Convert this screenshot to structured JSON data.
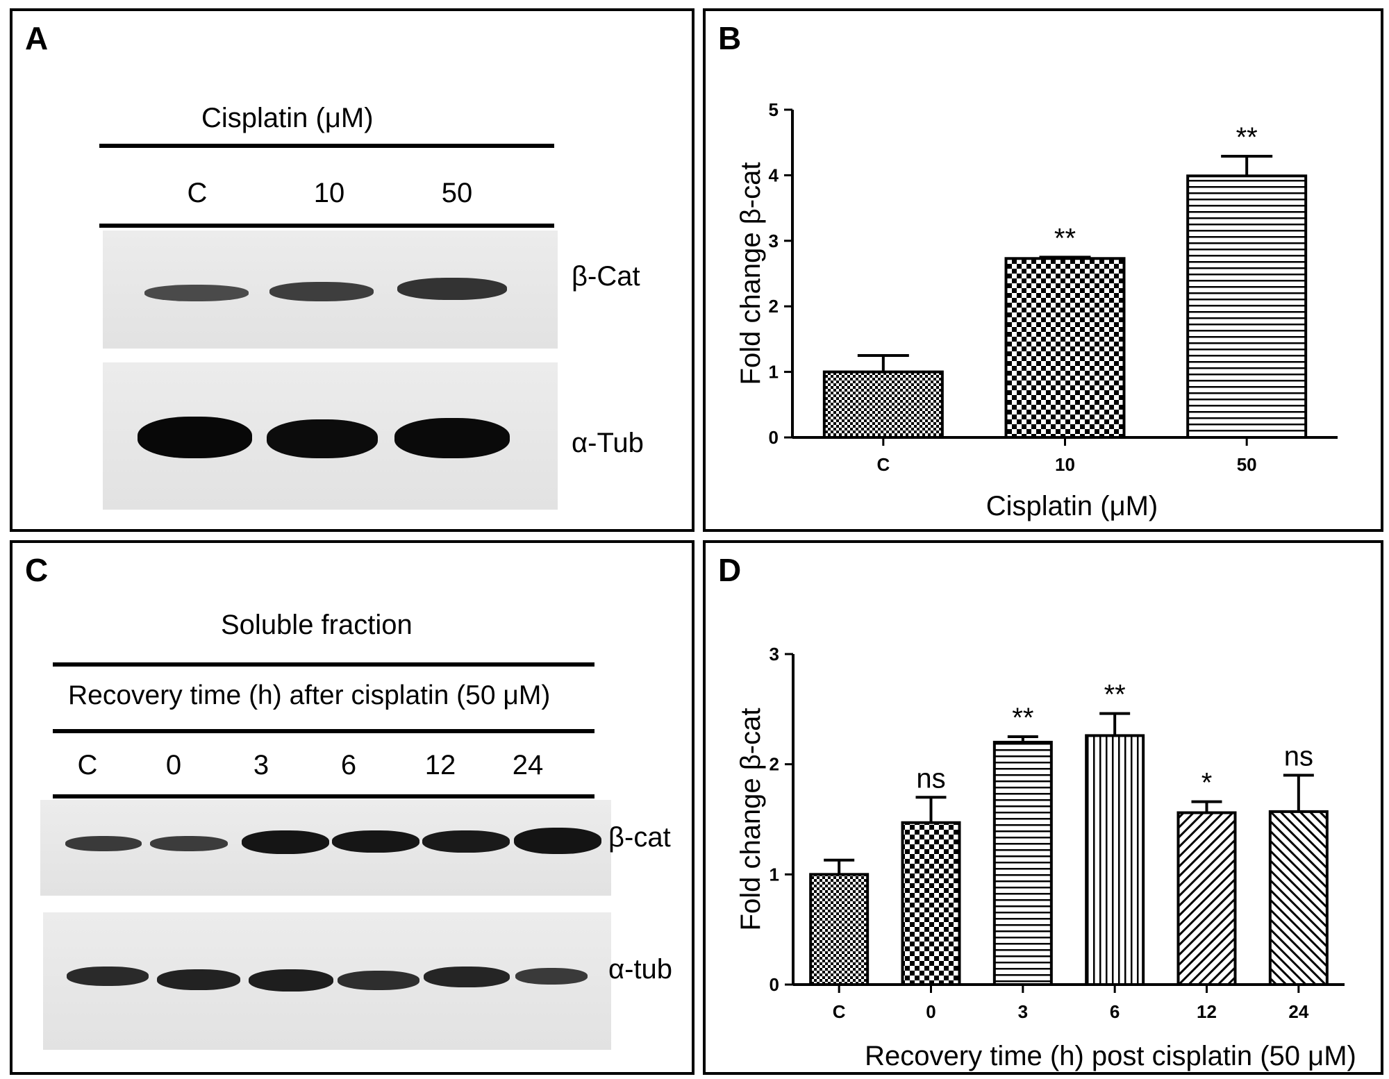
{
  "panels": {
    "a": {
      "letter": "A",
      "header": "Cisplatin (μM)",
      "lanes": [
        "C",
        "10",
        "50"
      ],
      "blots": [
        {
          "label": "β-Cat",
          "intensity": [
            0.55,
            0.62,
            0.7
          ]
        },
        {
          "label": "α-Tub",
          "intensity": [
            1.0,
            1.0,
            1.0
          ]
        }
      ]
    },
    "b": {
      "letter": "B"
    },
    "c": {
      "letter": "C",
      "header": "Soluble fraction",
      "subheader": "Recovery time (h) after cisplatin (50 μM)",
      "lanes": [
        "C",
        "0",
        "3",
        "6",
        "12",
        "24"
      ],
      "blots": [
        {
          "label": "β-cat",
          "intensity": [
            0.55,
            0.55,
            0.85,
            0.85,
            0.8,
            0.85
          ]
        },
        {
          "label": "α-tub",
          "intensity": [
            0.75,
            0.75,
            0.75,
            0.65,
            0.7,
            0.55
          ]
        }
      ]
    },
    "d": {
      "letter": "D"
    }
  },
  "chart_data": [
    {
      "type": "bar",
      "panel": "B",
      "categories": [
        "C",
        "10",
        "50"
      ],
      "values": [
        1.0,
        2.73,
        3.99
      ],
      "errors": [
        0.25,
        0.02,
        0.3
      ],
      "significance": [
        "",
        "**",
        "**"
      ],
      "patterns": [
        "fine-check",
        "check",
        "h-lines"
      ],
      "xlabel": "Cisplatin (μM)",
      "ylabel": "Fold change β-cat",
      "ylim": [
        0,
        5
      ],
      "yticks": [
        "0",
        "1",
        "2",
        "3",
        "4",
        "5"
      ]
    },
    {
      "type": "bar",
      "panel": "D",
      "categories": [
        "C",
        "0",
        "3",
        "6",
        "12",
        "24"
      ],
      "values": [
        1.0,
        1.47,
        2.2,
        2.26,
        1.56,
        1.57
      ],
      "errors": [
        0.13,
        0.23,
        0.05,
        0.2,
        0.1,
        0.33
      ],
      "significance": [
        "",
        "ns",
        "**",
        "**",
        "*",
        "ns"
      ],
      "patterns": [
        "fine-check",
        "check",
        "h-lines",
        "v-lines",
        "diag-down",
        "diag-up"
      ],
      "xlabel": "Recovery time (h) post cisplatin (50 μM)",
      "ylabel": "Fold change β-cat",
      "ylim": [
        0,
        3
      ],
      "yticks": [
        "0",
        "1",
        "2",
        "3"
      ]
    }
  ]
}
